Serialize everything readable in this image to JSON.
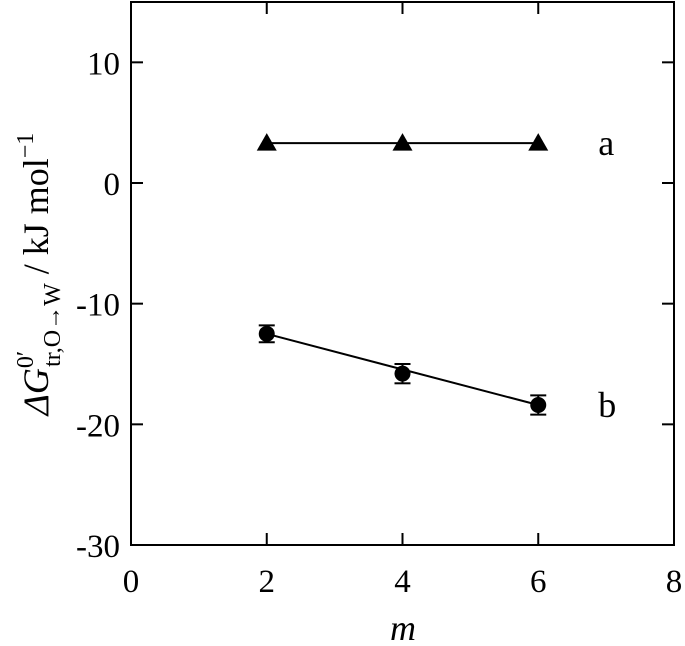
{
  "chart_data": {
    "type": "scatter",
    "xlabel": "m",
    "ylabel": {
      "prefix": "ΔG",
      "superscript": "0′",
      "subscript": "tr,O→W",
      "suffix": " / kJ mol",
      "unit_exponent": "−1"
    },
    "xlim": [
      0,
      8
    ],
    "ylim": [
      -30,
      15
    ],
    "xticks": [
      0,
      2,
      4,
      6,
      8
    ],
    "yticks": [
      10,
      0,
      -10,
      -20,
      -30
    ],
    "grid": false,
    "series": [
      {
        "name": "a",
        "marker": "triangle",
        "x": [
          2,
          4,
          6
        ],
        "y": [
          3.3,
          3.3,
          3.3
        ],
        "yerr": [
          0,
          0,
          0
        ],
        "fit": [
          3.3,
          3.3
        ]
      },
      {
        "name": "b",
        "marker": "circle",
        "x": [
          2,
          4,
          6
        ],
        "y": [
          -12.5,
          -15.8,
          -18.4
        ],
        "yerr": [
          0.7,
          0.8,
          0.8
        ],
        "fit": [
          -12.5,
          -18.4
        ]
      }
    ]
  }
}
